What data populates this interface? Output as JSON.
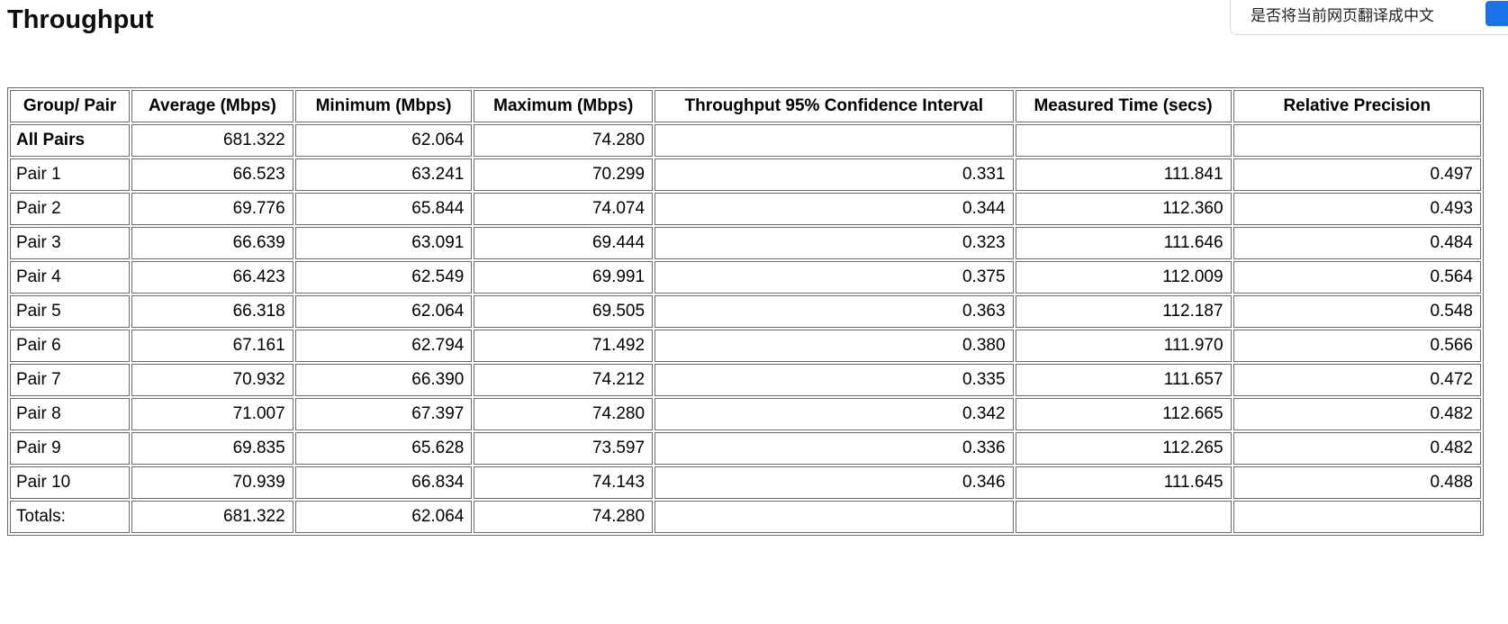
{
  "page": {
    "title": "Throughput"
  },
  "translate_popup": {
    "message": "是否将当前网页翻译成中文",
    "button_color": "#1a73e8"
  },
  "table": {
    "columns": [
      "Group/ Pair",
      "Average (Mbps)",
      "Minimum (Mbps)",
      "Maximum (Mbps)",
      "Throughput 95% Confidence Interval",
      "Measured Time (secs)",
      "Relative Precision"
    ],
    "rows": [
      {
        "group": "All Pairs",
        "values": [
          "681.322",
          "62.064",
          "74.280",
          "",
          "",
          ""
        ]
      },
      {
        "group": "Pair 1",
        "values": [
          "66.523",
          "63.241",
          "70.299",
          "0.331",
          "111.841",
          "0.497"
        ]
      },
      {
        "group": "Pair 2",
        "values": [
          "69.776",
          "65.844",
          "74.074",
          "0.344",
          "112.360",
          "0.493"
        ]
      },
      {
        "group": "Pair 3",
        "values": [
          "66.639",
          "63.091",
          "69.444",
          "0.323",
          "111.646",
          "0.484"
        ]
      },
      {
        "group": "Pair 4",
        "values": [
          "66.423",
          "62.549",
          "69.991",
          "0.375",
          "112.009",
          "0.564"
        ]
      },
      {
        "group": "Pair 5",
        "values": [
          "66.318",
          "62.064",
          "69.505",
          "0.363",
          "112.187",
          "0.548"
        ]
      },
      {
        "group": "Pair 6",
        "values": [
          "67.161",
          "62.794",
          "71.492",
          "0.380",
          "111.970",
          "0.566"
        ]
      },
      {
        "group": "Pair 7",
        "values": [
          "70.932",
          "66.390",
          "74.212",
          "0.335",
          "111.657",
          "0.472"
        ]
      },
      {
        "group": "Pair 8",
        "values": [
          "71.007",
          "67.397",
          "74.280",
          "0.342",
          "112.665",
          "0.482"
        ]
      },
      {
        "group": "Pair 9",
        "values": [
          "69.835",
          "65.628",
          "73.597",
          "0.336",
          "112.265",
          "0.482"
        ]
      },
      {
        "group": "Pair 10",
        "values": [
          "70.939",
          "66.834",
          "74.143",
          "0.346",
          "111.645",
          "0.488"
        ]
      },
      {
        "group": "Totals:",
        "values": [
          "681.322",
          "62.064",
          "74.280",
          "",
          "",
          ""
        ]
      }
    ]
  }
}
